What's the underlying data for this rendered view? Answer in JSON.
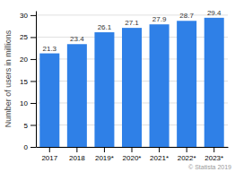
{
  "chart_data": {
    "type": "bar",
    "categories": [
      "2017",
      "2018",
      "2019*",
      "2020*",
      "2021*",
      "2022*",
      "2023*"
    ],
    "values": [
      21.3,
      23.4,
      26.1,
      27.1,
      27.9,
      28.7,
      29.4
    ],
    "color": "#2f80e7",
    "ylabel": "Number of users in millions",
    "ylim": [
      0,
      31
    ],
    "yticks": [
      0,
      5,
      10,
      15,
      20,
      25,
      30
    ],
    "grid": true,
    "data_labels": true,
    "annotations": [
      "© Statista 2019"
    ]
  }
}
